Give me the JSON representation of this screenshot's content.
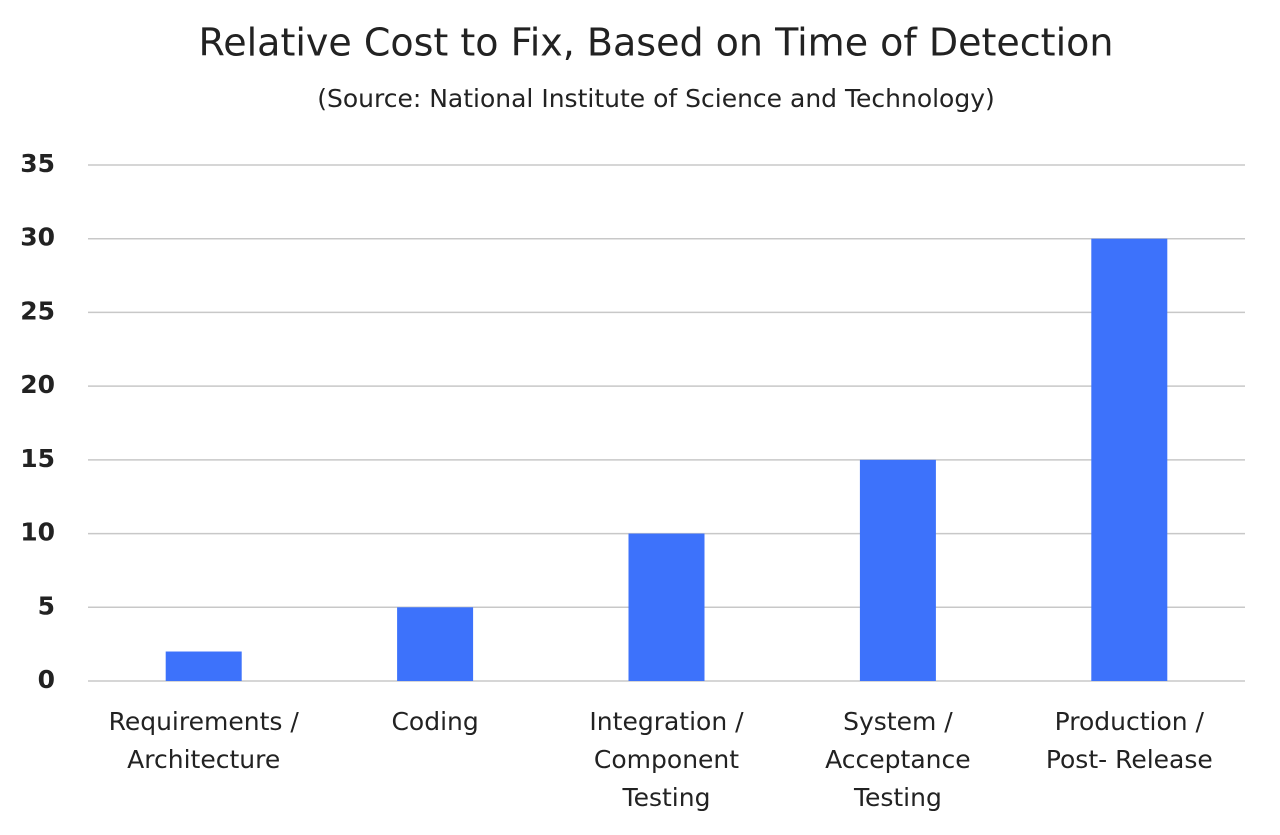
{
  "chart_data": {
    "type": "bar",
    "title": "Relative Cost to Fix, Based on Time of Detection",
    "subtitle": "(Source: National Institute of Science and Technology)",
    "categories": [
      "Requirements / Architecture",
      "Coding",
      "Integration / Component Testing",
      "System / Acceptance Testing",
      "Production / Post- Release"
    ],
    "values": [
      2,
      5,
      10,
      15,
      30
    ],
    "color": "#3d72fb",
    "ylim": [
      0,
      35
    ],
    "yticks": [
      0,
      5,
      10,
      15,
      20,
      25,
      30,
      35
    ],
    "grid": true
  }
}
